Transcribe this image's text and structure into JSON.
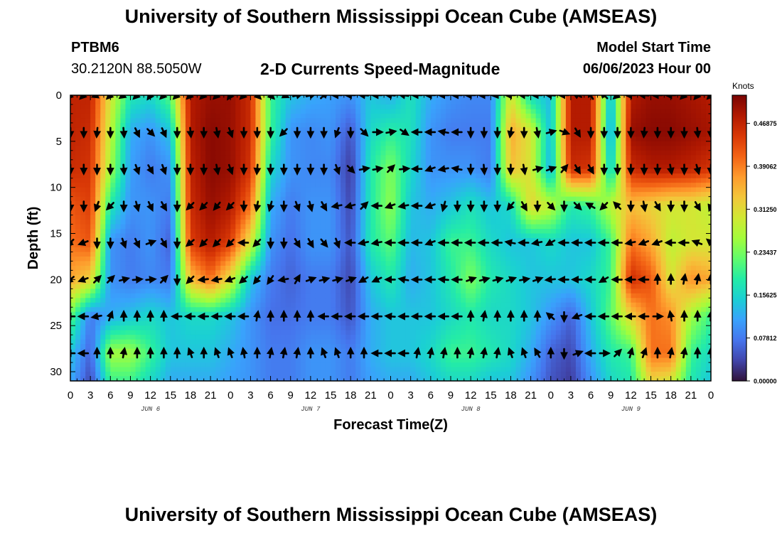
{
  "header": {
    "title": "University of Southern Mississippi Ocean Cube (AMSEAS)",
    "station": "PTBM6",
    "coordinates": "30.2120N  88.5050W",
    "subtitle": "2-D Currents Speed-Magnitude",
    "start_label": "Model Start Time",
    "start_date": "06/06/2023 Hour 00"
  },
  "footer": {
    "title": "University of Southern Mississippi Ocean Cube (AMSEAS)"
  },
  "chart_data": {
    "type": "heatmap",
    "title": "2-D Currents Speed-Magnitude",
    "xlabel": "Forecast Time(Z)",
    "ylabel": "Depth (ft)",
    "x_tick_labels": [
      "0",
      "3",
      "6",
      "9",
      "12",
      "15",
      "18",
      "21",
      "0",
      "3",
      "6",
      "9",
      "12",
      "15",
      "18",
      "21",
      "0",
      "3",
      "6",
      "9",
      "12",
      "15",
      "18",
      "21",
      "0",
      "3",
      "6",
      "9",
      "12",
      "15",
      "18",
      "21",
      "0"
    ],
    "x_range_hours": [
      0,
      96
    ],
    "day_labels": [
      {
        "label": "JUN 6",
        "hour": 12
      },
      {
        "label": "JUN 7",
        "hour": 36
      },
      {
        "label": "JUN 8",
        "hour": 60
      },
      {
        "label": "JUN 9",
        "hour": 84
      }
    ],
    "y_ticks": [
      0,
      5,
      10,
      15,
      20,
      25,
      30
    ],
    "y_range": [
      0,
      31
    ],
    "y_inverted": true,
    "colorbar": {
      "units": "Knots",
      "min": 0.0,
      "max": 0.52,
      "tick_values": [
        0.46875,
        0.390625,
        0.3125,
        0.234375,
        0.15625,
        0.078125,
        0.0
      ],
      "tick_labels": [
        "0.46875",
        "0.39062",
        "0.31250",
        "0.23437",
        "0.15625",
        "0.07812",
        "0.00000"
      ],
      "colors": [
        "#30123b",
        "#4145ab",
        "#4675ed",
        "#39a2fc",
        "#1bcfd4",
        "#24eca6",
        "#61fc6c",
        "#a4fc3b",
        "#d1e834",
        "#f3c63a",
        "#fe9b2d",
        "#f36315",
        "#d93806",
        "#b11901",
        "#7a0403"
      ]
    },
    "time_hours": [
      0,
      3,
      6,
      9,
      12,
      15,
      18,
      21,
      24,
      27,
      30,
      33,
      36,
      39,
      42,
      45,
      48,
      51,
      54,
      57,
      60,
      63,
      66,
      69,
      72,
      75,
      78,
      81,
      84,
      87,
      90,
      93,
      96
    ],
    "depths_ft": [
      0,
      4,
      8,
      12,
      16,
      20,
      24,
      28,
      31
    ],
    "speed_knots": [
      [
        0.47,
        0.47,
        0.3,
        0.18,
        0.16,
        0.22,
        0.48,
        0.5,
        0.5,
        0.46,
        0.2,
        0.14,
        0.12,
        0.11,
        0.1,
        0.14,
        0.12,
        0.17,
        0.12,
        0.1,
        0.09,
        0.09,
        0.3,
        0.16,
        0.13,
        0.48,
        0.48,
        0.12,
        0.48,
        0.5,
        0.5,
        0.49,
        0.48
      ],
      [
        0.47,
        0.46,
        0.28,
        0.12,
        0.1,
        0.14,
        0.48,
        0.51,
        0.5,
        0.46,
        0.2,
        0.1,
        0.09,
        0.1,
        0.05,
        0.16,
        0.19,
        0.17,
        0.1,
        0.08,
        0.08,
        0.08,
        0.36,
        0.3,
        0.13,
        0.48,
        0.48,
        0.1,
        0.5,
        0.51,
        0.51,
        0.5,
        0.49
      ],
      [
        0.46,
        0.45,
        0.26,
        0.11,
        0.08,
        0.1,
        0.47,
        0.51,
        0.5,
        0.45,
        0.16,
        0.1,
        0.09,
        0.09,
        0.03,
        0.18,
        0.24,
        0.16,
        0.1,
        0.1,
        0.1,
        0.08,
        0.34,
        0.3,
        0.12,
        0.46,
        0.45,
        0.14,
        0.46,
        0.48,
        0.48,
        0.47,
        0.45
      ],
      [
        0.42,
        0.44,
        0.18,
        0.1,
        0.1,
        0.08,
        0.46,
        0.5,
        0.48,
        0.4,
        0.12,
        0.08,
        0.1,
        0.1,
        0.04,
        0.18,
        0.25,
        0.14,
        0.12,
        0.14,
        0.17,
        0.14,
        0.16,
        0.32,
        0.28,
        0.18,
        0.2,
        0.28,
        0.34,
        0.32,
        0.3,
        0.3,
        0.28
      ],
      [
        0.4,
        0.42,
        0.1,
        0.08,
        0.1,
        0.06,
        0.44,
        0.48,
        0.44,
        0.3,
        0.1,
        0.07,
        0.1,
        0.1,
        0.05,
        0.18,
        0.22,
        0.13,
        0.14,
        0.2,
        0.2,
        0.16,
        0.14,
        0.14,
        0.16,
        0.14,
        0.14,
        0.2,
        0.4,
        0.36,
        0.28,
        0.3,
        0.3
      ],
      [
        0.36,
        0.32,
        0.1,
        0.08,
        0.09,
        0.08,
        0.34,
        0.4,
        0.3,
        0.14,
        0.08,
        0.06,
        0.08,
        0.08,
        0.04,
        0.14,
        0.18,
        0.12,
        0.14,
        0.18,
        0.24,
        0.18,
        0.16,
        0.14,
        0.14,
        0.14,
        0.16,
        0.2,
        0.46,
        0.42,
        0.3,
        0.38,
        0.36
      ],
      [
        0.22,
        0.08,
        0.12,
        0.14,
        0.16,
        0.14,
        0.16,
        0.16,
        0.14,
        0.1,
        0.07,
        0.07,
        0.08,
        0.08,
        0.05,
        0.12,
        0.14,
        0.14,
        0.14,
        0.16,
        0.18,
        0.16,
        0.16,
        0.14,
        0.1,
        0.06,
        0.14,
        0.22,
        0.32,
        0.4,
        0.38,
        0.26,
        0.2
      ],
      [
        0.14,
        0.06,
        0.26,
        0.26,
        0.2,
        0.14,
        0.14,
        0.14,
        0.12,
        0.1,
        0.08,
        0.08,
        0.1,
        0.1,
        0.08,
        0.12,
        0.14,
        0.14,
        0.16,
        0.2,
        0.2,
        0.18,
        0.16,
        0.12,
        0.06,
        0.04,
        0.12,
        0.18,
        0.2,
        0.4,
        0.4,
        0.2,
        0.16
      ],
      [
        0.12,
        0.04,
        0.2,
        0.2,
        0.16,
        0.12,
        0.12,
        0.12,
        0.11,
        0.1,
        0.08,
        0.08,
        0.1,
        0.1,
        0.08,
        0.11,
        0.12,
        0.12,
        0.14,
        0.16,
        0.16,
        0.14,
        0.14,
        0.1,
        0.05,
        0.03,
        0.1,
        0.16,
        0.18,
        0.32,
        0.3,
        0.18,
        0.14
      ]
    ],
    "arrow_depths_ft": [
      0,
      4,
      8,
      12,
      16,
      20,
      24,
      28
    ],
    "arrow_times_hours": [
      0,
      2,
      4,
      6,
      8,
      10,
      12,
      14,
      16,
      18,
      20,
      22,
      24,
      26,
      28,
      30,
      32,
      34,
      36,
      38,
      40,
      42,
      44,
      46,
      48,
      50,
      52,
      54,
      56,
      58,
      60,
      62,
      64,
      66,
      68,
      70,
      72,
      74,
      76,
      78,
      80,
      82,
      84,
      86,
      88,
      90,
      92,
      94,
      96
    ],
    "arrow_direction_deg": [
      [
        225,
        225,
        200,
        225,
        215,
        225,
        235,
        225,
        225,
        225,
        225,
        225,
        235,
        225,
        315,
        315,
        335,
        15,
        15,
        45,
        180,
        180,
        175,
        180,
        175,
        170,
        180,
        180,
        180,
        180,
        180,
        180,
        185,
        180,
        175,
        180,
        175,
        180,
        155,
        120,
        135,
        220,
        180,
        175,
        180,
        180,
        225,
        230,
        225
      ],
      [
        270,
        270,
        265,
        270,
        275,
        295,
        315,
        295,
        270,
        275,
        270,
        280,
        290,
        270,
        270,
        270,
        225,
        270,
        270,
        270,
        250,
        270,
        315,
        0,
        10,
        325,
        180,
        180,
        170,
        180,
        270,
        270,
        270,
        260,
        270,
        280,
        15,
        340,
        300,
        270,
        270,
        270,
        270,
        265,
        270,
        270,
        270,
        275,
        270
      ],
      [
        270,
        270,
        270,
        270,
        275,
        290,
        300,
        290,
        270,
        270,
        270,
        280,
        290,
        270,
        265,
        270,
        270,
        270,
        270,
        270,
        290,
        315,
        10,
        10,
        45,
        5,
        180,
        200,
        190,
        170,
        270,
        275,
        270,
        270,
        280,
        15,
        20,
        50,
        300,
        300,
        270,
        270,
        270,
        270,
        270,
        280,
        270,
        285,
        270
      ],
      [
        270,
        270,
        250,
        225,
        270,
        285,
        295,
        300,
        270,
        225,
        225,
        230,
        225,
        270,
        260,
        255,
        270,
        290,
        285,
        300,
        190,
        195,
        45,
        180,
        200,
        190,
        180,
        200,
        255,
        270,
        270,
        270,
        270,
        230,
        300,
        270,
        315,
        270,
        315,
        150,
        225,
        135,
        270,
        280,
        300,
        270,
        270,
        300,
        250
      ],
      [
        225,
        200,
        270,
        270,
        290,
        295,
        20,
        300,
        270,
        220,
        225,
        225,
        225,
        180,
        225,
        270,
        270,
        300,
        300,
        310,
        290,
        180,
        190,
        190,
        180,
        180,
        180,
        200,
        180,
        180,
        180,
        180,
        180,
        170,
        180,
        190,
        210,
        180,
        180,
        180,
        180,
        180,
        190,
        200,
        200,
        180,
        180,
        160,
        140
      ],
      [
        220,
        200,
        45,
        45,
        15,
        5,
        5,
        45,
        270,
        225,
        185,
        190,
        200,
        220,
        230,
        235,
        190,
        60,
        20,
        15,
        15,
        20,
        210,
        205,
        180,
        170,
        180,
        180,
        175,
        180,
        20,
        15,
        15,
        20,
        10,
        20,
        185,
        180,
        180,
        180,
        210,
        180,
        180,
        180,
        90,
        90,
        80,
        80,
        90
      ],
      [
        180,
        180,
        190,
        70,
        90,
        90,
        90,
        90,
        180,
        180,
        180,
        180,
        180,
        180,
        80,
        90,
        90,
        90,
        90,
        180,
        180,
        180,
        180,
        180,
        175,
        180,
        180,
        180,
        180,
        180,
        90,
        80,
        90,
        90,
        90,
        90,
        140,
        270,
        200,
        180,
        180,
        180,
        180,
        180,
        0,
        100,
        90,
        90,
        85
      ],
      [
        180,
        180,
        90,
        90,
        80,
        90,
        90,
        90,
        90,
        110,
        90,
        110,
        110,
        100,
        90,
        80,
        80,
        80,
        90,
        110,
        110,
        90,
        90,
        180,
        180,
        180,
        80,
        80,
        80,
        90,
        80,
        80,
        80,
        110,
        110,
        120,
        90,
        270,
        20,
        180,
        0,
        45,
        75,
        70,
        90,
        80,
        80,
        90,
        90
      ]
    ]
  }
}
